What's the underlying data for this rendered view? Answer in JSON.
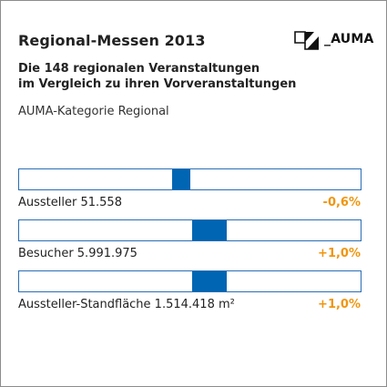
{
  "header": {
    "title": "Regional-Messen 2013",
    "subtitle_line1": "Die 148 regionalen Veranstaltungen",
    "subtitle_line2": "im Vergleich zu ihren Vorveranstaltungen",
    "category": "AUMA-Kategorie Regional",
    "logo_text": "_AUMA"
  },
  "colors": {
    "marker": "#0065b3",
    "track_border": "#2a6db2",
    "change_value": "#f0960f"
  },
  "chart_data": {
    "type": "bar",
    "categories": [
      "Aussteller 51.558",
      "Besucher 5.991.975",
      "Aussteller-Standfläche 1.514.418 m²"
    ],
    "series": [
      {
        "values": [
          -0.6,
          1.0,
          1.0
        ],
        "labels": [
          "-0,6%",
          "+1,0%",
          "+1,0%"
        ]
      }
    ]
  },
  "rows": [
    {
      "label": "Aussteller 51.558",
      "value_label": "-0,6%",
      "change": -0.6
    },
    {
      "label": "Besucher 5.991.975",
      "value_label": "+1,0%",
      "change": 1.0
    },
    {
      "label": "Aussteller-Standfläche 1.514.418 m²",
      "value_label": "+1,0%",
      "change": 1.0
    }
  ]
}
